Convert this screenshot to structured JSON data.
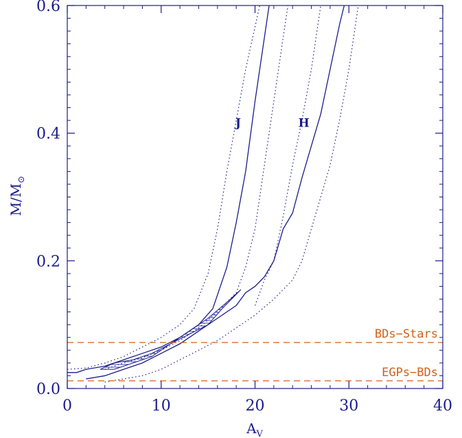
{
  "colors": {
    "axis": "#1a1a8c",
    "curve": "#1a1a8c",
    "reference": "#d2601a"
  },
  "chart_data": {
    "type": "line",
    "xlabel": "A",
    "xlabel_sub": "V",
    "ylabel": "M/M",
    "ylabel_sub": "⊙",
    "xlim": [
      0,
      40
    ],
    "ylim": [
      0,
      0.6
    ],
    "xticks": [
      "0",
      "10",
      "20",
      "30",
      "40"
    ],
    "yticks": [
      "0.0",
      "0.2",
      "0.4",
      "0.6"
    ],
    "grid": false,
    "legend": "none",
    "series": [
      {
        "style": "solid",
        "points": [
          [
            0,
            0.025
          ],
          [
            1,
            0.025
          ],
          [
            2,
            0.03
          ],
          [
            4,
            0.035
          ],
          [
            6,
            0.045
          ],
          [
            8,
            0.055
          ],
          [
            10,
            0.065
          ],
          [
            12,
            0.08
          ],
          [
            14,
            0.1
          ],
          [
            15.5,
            0.125
          ],
          [
            17,
            0.19
          ],
          [
            18,
            0.26
          ],
          [
            19,
            0.34
          ],
          [
            20,
            0.45
          ],
          [
            21,
            0.55
          ],
          [
            21.5,
            0.6
          ]
        ]
      },
      {
        "style": "dotted",
        "points": [
          [
            0,
            0.03
          ],
          [
            2,
            0.032
          ],
          [
            4,
            0.04
          ],
          [
            6,
            0.05
          ],
          [
            8,
            0.065
          ],
          [
            10,
            0.08
          ],
          [
            12,
            0.1
          ],
          [
            13.5,
            0.125
          ],
          [
            15,
            0.18
          ],
          [
            16,
            0.25
          ],
          [
            17,
            0.34
          ],
          [
            18,
            0.42
          ],
          [
            19,
            0.5
          ],
          [
            20.5,
            0.6
          ]
        ]
      },
      {
        "style": "dotted",
        "points": [
          [
            4,
            0.03
          ],
          [
            6,
            0.04
          ],
          [
            8,
            0.048
          ],
          [
            10,
            0.06
          ],
          [
            12,
            0.075
          ],
          [
            14,
            0.095
          ],
          [
            16,
            0.12
          ],
          [
            18,
            0.15
          ],
          [
            19,
            0.19
          ],
          [
            20,
            0.25
          ],
          [
            21,
            0.35
          ],
          [
            22,
            0.45
          ],
          [
            23,
            0.55
          ],
          [
            23.5,
            0.6
          ]
        ]
      },
      {
        "style": "solid",
        "points": [
          [
            2,
            0.015
          ],
          [
            4,
            0.02
          ],
          [
            6,
            0.03
          ],
          [
            8,
            0.04
          ],
          [
            10,
            0.055
          ],
          [
            12,
            0.07
          ],
          [
            14,
            0.09
          ],
          [
            16,
            0.11
          ],
          [
            18,
            0.13
          ],
          [
            19,
            0.15
          ],
          [
            20,
            0.16
          ],
          [
            21,
            0.175
          ],
          [
            22,
            0.2
          ],
          [
            23,
            0.25
          ],
          [
            24,
            0.275
          ],
          [
            25,
            0.33
          ],
          [
            26,
            0.38
          ],
          [
            27,
            0.43
          ],
          [
            28,
            0.5
          ],
          [
            29,
            0.57
          ],
          [
            29.5,
            0.6
          ]
        ]
      },
      {
        "style": "dotted",
        "points": [
          [
            4,
            0.01
          ],
          [
            6,
            0.015
          ],
          [
            8,
            0.02
          ],
          [
            10,
            0.03
          ],
          [
            12,
            0.045
          ],
          [
            14,
            0.06
          ],
          [
            16,
            0.075
          ],
          [
            18,
            0.095
          ],
          [
            20,
            0.115
          ],
          [
            22,
            0.14
          ],
          [
            24,
            0.17
          ],
          [
            25,
            0.2
          ],
          [
            26,
            0.25
          ],
          [
            27,
            0.3
          ],
          [
            28,
            0.35
          ],
          [
            29,
            0.42
          ],
          [
            30,
            0.5
          ],
          [
            31,
            0.6
          ]
        ]
      },
      {
        "style": "dotted",
        "points": [
          [
            20,
            0.13
          ],
          [
            21,
            0.17
          ],
          [
            22,
            0.2
          ],
          [
            23,
            0.27
          ],
          [
            24,
            0.35
          ],
          [
            25,
            0.42
          ],
          [
            26,
            0.5
          ],
          [
            27,
            0.6
          ]
        ]
      }
    ],
    "hatched_region": [
      [
        3.5,
        0.03
      ],
      [
        5,
        0.04
      ],
      [
        7,
        0.045
      ],
      [
        9,
        0.055
      ],
      [
        11,
        0.07
      ],
      [
        13,
        0.085
      ],
      [
        15,
        0.1
      ],
      [
        16.5,
        0.125
      ],
      [
        18.5,
        0.155
      ],
      [
        17,
        0.135
      ],
      [
        15,
        0.11
      ],
      [
        13,
        0.09
      ],
      [
        11,
        0.07
      ],
      [
        9,
        0.05
      ],
      [
        7,
        0.04
      ],
      [
        5,
        0.03
      ]
    ],
    "annotations": [
      {
        "text": "J",
        "x": 18.2,
        "y": 0.41
      },
      {
        "text": "H",
        "x": 25.2,
        "y": 0.41
      }
    ],
    "reference_lines": [
      {
        "y": 0.072,
        "style": "dashed",
        "label": "BDs−Stars"
      },
      {
        "y": 0.012,
        "style": "dashed",
        "label": "EGPs−BDs"
      }
    ]
  }
}
